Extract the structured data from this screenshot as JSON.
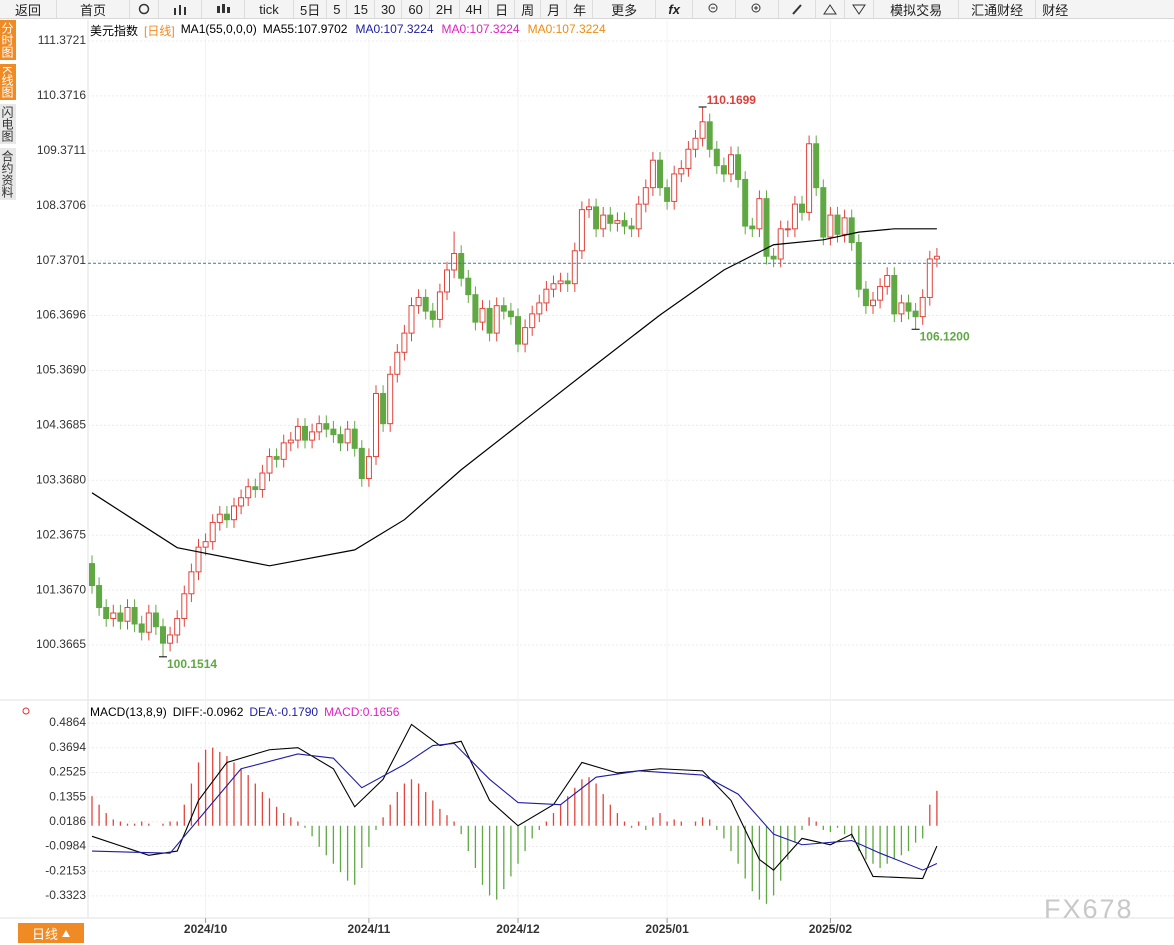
{
  "toolbar": [
    "返回",
    "首页",
    "tick",
    "5日",
    "5",
    "15",
    "30",
    "60",
    "2H",
    "4H",
    "日",
    "周",
    "月",
    "年",
    "更多",
    "fx",
    "模拟交易",
    "汇通财经",
    "财经"
  ],
  "sidebar": [
    "分时图",
    "K线图",
    "闪电图",
    "合约资料"
  ],
  "bottom_tab": "日线",
  "watermark": "FX678",
  "chart_data": [
    {
      "type": "candlestick",
      "title": "美元指数",
      "period": "[日线]",
      "indicator": "MA1(55,0,0,0)",
      "ma_labels": [
        {
          "text": "MA55:107.9702",
          "color": "#000000"
        },
        {
          "text": "MA0:107.3224",
          "color": "#1c1ca8"
        },
        {
          "text": "MA0:107.3224",
          "color": "#e020c0"
        },
        {
          "text": "MA0:107.3224",
          "color": "#f08a10"
        }
      ],
      "up_color": "#e0443c",
      "down_color": "#5fa843",
      "open": [
        101.85,
        101.45,
        101.05,
        100.85,
        100.95,
        100.8,
        101.05,
        100.75,
        100.6,
        100.95,
        100.7,
        100.4,
        100.55,
        100.85,
        101.3,
        101.7,
        102.15,
        102.25,
        102.6,
        102.75,
        102.65,
        102.9,
        103.05,
        103.25,
        103.2,
        103.5,
        103.8,
        103.75,
        104.05,
        104.1,
        104.35,
        104.1,
        104.25,
        104.4,
        104.3,
        104.2,
        104.05,
        104.3,
        103.95,
        103.4,
        103.8,
        104.95,
        104.4,
        105.3,
        105.7,
        106.05,
        106.55,
        106.7,
        106.45,
        106.3,
        106.8,
        107.2,
        107.5,
        107.05,
        106.75,
        106.25,
        106.5,
        106.05,
        106.55,
        106.45,
        106.35,
        105.85,
        106.15,
        106.4,
        106.6,
        106.85,
        106.95,
        107.0,
        106.95,
        107.55,
        108.3,
        108.35,
        107.95,
        108.2,
        108.05,
        108.1,
        108.0,
        107.95,
        108.4,
        108.7,
        109.2,
        108.7,
        108.45,
        108.95,
        109.05,
        109.4,
        109.6,
        109.9,
        109.4,
        109.1,
        108.95,
        109.3,
        108.85,
        108.0,
        107.95,
        108.5,
        107.45,
        107.4,
        107.95,
        107.95,
        108.4,
        108.25,
        109.5,
        108.7,
        107.8,
        108.2,
        107.85,
        108.15,
        107.7,
        106.85,
        106.55,
        106.65,
        106.9,
        107.1,
        106.4,
        106.6,
        106.45,
        106.35,
        106.7,
        107.4
      ],
      "high": [
        102.0,
        101.6,
        101.2,
        101.1,
        101.1,
        101.2,
        101.2,
        100.9,
        101.1,
        101.1,
        100.85,
        100.7,
        101.0,
        101.45,
        101.85,
        102.3,
        102.4,
        102.75,
        102.9,
        102.9,
        103.05,
        103.2,
        103.4,
        103.4,
        103.65,
        103.95,
        103.95,
        104.2,
        104.25,
        104.5,
        104.5,
        104.4,
        104.55,
        104.55,
        104.45,
        104.35,
        104.45,
        104.45,
        104.1,
        103.95,
        105.1,
        105.1,
        105.45,
        105.85,
        106.2,
        106.7,
        106.85,
        106.85,
        106.6,
        106.95,
        107.35,
        107.9,
        107.65,
        107.2,
        106.9,
        106.65,
        106.65,
        106.7,
        106.7,
        106.6,
        106.5,
        106.3,
        106.55,
        106.75,
        107.0,
        107.1,
        107.15,
        107.15,
        107.7,
        108.45,
        108.5,
        108.5,
        108.35,
        108.35,
        108.25,
        108.25,
        108.15,
        108.55,
        108.85,
        109.35,
        109.35,
        108.85,
        109.1,
        109.2,
        109.55,
        109.75,
        110.1699,
        110.05,
        109.55,
        109.25,
        109.45,
        109.45,
        109.0,
        108.15,
        108.65,
        108.65,
        107.6,
        108.1,
        108.1,
        108.55,
        108.55,
        109.65,
        109.65,
        108.85,
        108.35,
        108.35,
        108.3,
        108.3,
        107.85,
        107.0,
        106.8,
        107.05,
        107.25,
        107.25,
        106.75,
        106.75,
        106.6,
        106.85,
        107.55,
        107.6
      ],
      "low": [
        101.3,
        100.9,
        100.7,
        100.7,
        100.65,
        100.65,
        100.6,
        100.45,
        100.45,
        100.55,
        100.1514,
        100.25,
        100.4,
        100.7,
        101.15,
        101.55,
        102.0,
        102.1,
        102.45,
        102.5,
        102.5,
        102.75,
        102.9,
        103.05,
        103.05,
        103.35,
        103.6,
        103.6,
        103.9,
        103.95,
        103.95,
        103.95,
        104.1,
        104.15,
        104.05,
        103.9,
        103.9,
        103.8,
        103.25,
        103.25,
        103.65,
        104.25,
        104.25,
        105.15,
        105.55,
        105.9,
        106.4,
        106.3,
        106.15,
        106.15,
        106.65,
        107.05,
        106.9,
        106.6,
        106.1,
        106.1,
        105.9,
        105.9,
        106.3,
        106.2,
        105.7,
        105.7,
        106.0,
        106.25,
        106.45,
        106.7,
        106.8,
        106.8,
        106.8,
        107.4,
        108.15,
        107.8,
        107.8,
        107.9,
        107.9,
        107.85,
        107.8,
        107.8,
        108.25,
        108.55,
        108.55,
        108.3,
        108.3,
        108.8,
        108.9,
        109.25,
        109.45,
        109.25,
        108.95,
        108.8,
        108.8,
        108.7,
        107.85,
        107.8,
        107.8,
        107.3,
        107.25,
        107.25,
        107.8,
        107.8,
        108.1,
        108.1,
        108.55,
        107.65,
        107.65,
        107.7,
        107.7,
        107.55,
        106.7,
        106.4,
        106.4,
        106.5,
        106.75,
        106.25,
        106.25,
        106.3,
        106.12,
        106.2,
        106.55,
        107.25
      ],
      "close": [
        101.45,
        101.05,
        100.85,
        100.95,
        100.8,
        101.05,
        100.75,
        100.6,
        100.95,
        100.7,
        100.4,
        100.55,
        100.85,
        101.3,
        101.7,
        102.15,
        102.25,
        102.6,
        102.75,
        102.65,
        102.9,
        103.05,
        103.25,
        103.2,
        103.5,
        103.8,
        103.75,
        104.05,
        104.1,
        104.35,
        104.1,
        104.25,
        104.4,
        104.3,
        104.2,
        104.05,
        104.3,
        103.95,
        103.4,
        103.8,
        104.95,
        104.4,
        105.3,
        105.7,
        106.05,
        106.55,
        106.7,
        106.45,
        106.3,
        106.8,
        107.2,
        107.5,
        107.05,
        106.75,
        106.25,
        106.5,
        106.05,
        106.55,
        106.45,
        106.35,
        105.85,
        106.15,
        106.4,
        106.6,
        106.85,
        106.95,
        107.0,
        106.95,
        107.55,
        108.3,
        108.35,
        107.95,
        108.2,
        108.05,
        108.1,
        108.0,
        107.95,
        108.4,
        108.7,
        109.2,
        108.7,
        108.45,
        108.95,
        109.05,
        109.4,
        109.6,
        109.9,
        109.4,
        109.1,
        108.95,
        109.3,
        108.85,
        108.0,
        107.95,
        108.5,
        107.45,
        107.4,
        107.95,
        107.95,
        108.4,
        108.25,
        109.5,
        108.7,
        107.8,
        108.2,
        107.85,
        108.15,
        107.7,
        106.85,
        106.55,
        106.65,
        106.9,
        107.1,
        106.4,
        106.6,
        106.45,
        106.35,
        106.7,
        107.4,
        107.45
      ],
      "ma_line": {
        "color": "#000000",
        "x": [
          0,
          12,
          25,
          37,
          44,
          52,
          61,
          70,
          80,
          89,
          96,
          103,
          108,
          113,
          119
        ],
        "values": [
          103.14,
          102.14,
          101.81,
          102.1,
          102.65,
          103.56,
          104.47,
          105.38,
          106.38,
          107.2,
          107.66,
          107.75,
          107.89,
          107.95,
          107.95
        ]
      },
      "current_price": 107.3224,
      "current_color": "#2a7ab0",
      "annotations": [
        {
          "index": 86,
          "value": 110.1699,
          "color": "#d8403a"
        },
        {
          "index": 10,
          "value": 100.1514,
          "color": "#5fa843"
        },
        {
          "index": 116,
          "value": 106.12,
          "label": "106.1200",
          "color": "#5fa843"
        }
      ],
      "ylim": [
        99.547,
        111.755
      ],
      "yticks": [
        111.3721,
        110.3716,
        109.3711,
        108.3706,
        107.3701,
        106.3696,
        {
          "value": 105.369,
          "label": "105.3690"
        },
        104.3685,
        {
          "value": 103.368,
          "label": "103.3680"
        },
        102.3675,
        {
          "value": 101.367,
          "label": "101.3670"
        },
        100.3665
      ],
      "xticks": [
        {
          "value": 16,
          "label": "2024/10"
        },
        {
          "value": 39,
          "label": "2024/11"
        },
        {
          "value": 60,
          "label": "2024/12"
        },
        {
          "value": 81,
          "label": "2025/01"
        },
        {
          "value": 104,
          "label": "2025/02"
        }
      ],
      "grid": true
    },
    {
      "type": "macd",
      "legend": [
        "MACD(13,8,9)",
        "DIFF:-0.0962",
        "DEA:-0.1790",
        "MACD:0.1656"
      ],
      "legend_colors": [
        "#000000",
        "#000000",
        "#1c1ca8",
        "#e020c0"
      ],
      "up_color": "#e0443c",
      "down_color": "#5fa843",
      "histogram": [
        0.14,
        0.1,
        0.06,
        0.03,
        0.02,
        0.01,
        0.01,
        0.02,
        0.01,
        0.0,
        0.01,
        0.02,
        0.02,
        0.1,
        0.2,
        0.3,
        0.36,
        0.37,
        0.35,
        0.33,
        0.3,
        0.27,
        0.24,
        0.2,
        0.16,
        0.13,
        0.09,
        0.06,
        0.04,
        0.02,
        -0.01,
        -0.05,
        -0.1,
        -0.14,
        -0.18,
        -0.22,
        -0.26,
        -0.28,
        -0.2,
        -0.1,
        -0.02,
        0.04,
        0.1,
        0.16,
        0.2,
        0.22,
        0.2,
        0.16,
        0.12,
        0.08,
        0.05,
        0.02,
        -0.04,
        -0.12,
        -0.2,
        -0.28,
        -0.33,
        -0.35,
        -0.3,
        -0.24,
        -0.18,
        -0.12,
        -0.06,
        -0.02,
        0.02,
        0.06,
        0.1,
        0.14,
        0.18,
        0.22,
        0.23,
        0.2,
        0.15,
        0.1,
        0.06,
        0.02,
        -0.01,
        0.02,
        -0.02,
        0.04,
        0.06,
        0.02,
        0.03,
        0.02,
        0.0,
        0.02,
        0.04,
        0.03,
        -0.02,
        -0.06,
        -0.12,
        -0.18,
        -0.25,
        -0.31,
        -0.35,
        -0.37,
        -0.33,
        -0.26,
        -0.16,
        -0.08,
        -0.02,
        0.04,
        0.02,
        -0.02,
        -0.03,
        -0.01,
        -0.04,
        -0.06,
        -0.12,
        -0.16,
        -0.18,
        -0.2,
        -0.18,
        -0.16,
        -0.14,
        -0.12,
        -0.08,
        -0.06,
        0.1,
        0.1656
      ],
      "diff": {
        "color": "#000000",
        "x": [
          0,
          8,
          12,
          15,
          19,
          25,
          29,
          34,
          37,
          41,
          45,
          49,
          52,
          56,
          60,
          65,
          69,
          74,
          80,
          86,
          90,
          94,
          96,
          100,
          104,
          107,
          110,
          117,
          119
        ],
        "values": [
          -0.05,
          -0.14,
          -0.12,
          0.12,
          0.3,
          0.36,
          0.37,
          0.27,
          0.09,
          0.22,
          0.48,
          0.38,
          0.4,
          0.12,
          0.0,
          0.1,
          0.3,
          0.25,
          0.27,
          0.26,
          0.12,
          -0.16,
          -0.21,
          -0.06,
          -0.09,
          -0.04,
          -0.24,
          -0.25,
          -0.0962
        ]
      },
      "dea": {
        "color": "#1c1ca8",
        "x": [
          0,
          11,
          15,
          21,
          29,
          34,
          38,
          44,
          48,
          51,
          56,
          60,
          66,
          71,
          77,
          86,
          91,
          96,
          100,
          107,
          111,
          117,
          119
        ],
        "values": [
          -0.12,
          -0.13,
          0.03,
          0.27,
          0.34,
          0.32,
          0.18,
          0.29,
          0.38,
          0.39,
          0.22,
          0.11,
          0.1,
          0.23,
          0.26,
          0.24,
          0.15,
          -0.04,
          -0.09,
          -0.07,
          -0.13,
          -0.21,
          -0.179
        ]
      },
      "ylim": [
        -0.437,
        0.572
      ],
      "yticks": [
        0.4864,
        0.3694,
        0.2525,
        0.1355,
        0.0186,
        -0.0984,
        -0.2153,
        -0.3323
      ]
    }
  ]
}
